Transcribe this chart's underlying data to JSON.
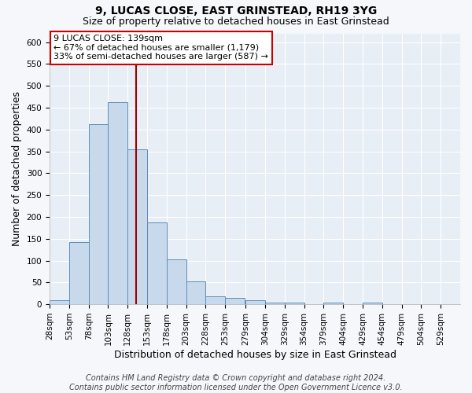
{
  "title": "9, LUCAS CLOSE, EAST GRINSTEAD, RH19 3YG",
  "subtitle": "Size of property relative to detached houses in East Grinstead",
  "xlabel": "Distribution of detached houses by size in East Grinstead",
  "ylabel": "Number of detached properties",
  "bar_values": [
    10,
    143,
    413,
    463,
    355,
    187,
    103,
    52,
    18,
    14,
    10,
    3,
    3,
    0,
    3,
    0,
    3
  ],
  "bin_edges": [
    28,
    53,
    78,
    103,
    128,
    153,
    178,
    203,
    228,
    253,
    279,
    304,
    329,
    354,
    379,
    404,
    429,
    454,
    479,
    504,
    529
  ],
  "tick_labels": [
    "28sqm",
    "53sqm",
    "78sqm",
    "103sqm",
    "128sqm",
    "153sqm",
    "178sqm",
    "203sqm",
    "228sqm",
    "253sqm",
    "279sqm",
    "304sqm",
    "329sqm",
    "354sqm",
    "379sqm",
    "404sqm",
    "429sqm",
    "454sqm",
    "479sqm",
    "504sqm",
    "529sqm"
  ],
  "bar_color": "#c9d9ec",
  "bar_edge_color": "#5b8db8",
  "vline_x": 139,
  "vline_color": "#990000",
  "ylim_max": 620,
  "yticks": [
    0,
    50,
    100,
    150,
    200,
    250,
    300,
    350,
    400,
    450,
    500,
    550,
    600
  ],
  "annotation_title": "9 LUCAS CLOSE: 139sqm",
  "annotation_line1": "← 67% of detached houses are smaller (1,179)",
  "annotation_line2": "33% of semi-detached houses are larger (587) →",
  "annotation_box_facecolor": "#ffffff",
  "annotation_box_edgecolor": "#cc0000",
  "footer_line1": "Contains HM Land Registry data © Crown copyright and database right 2024.",
  "footer_line2": "Contains public sector information licensed under the Open Government Licence v3.0.",
  "plot_bg_color": "#e8eef5",
  "fig_bg_color": "#f5f7fa",
  "grid_color": "#ffffff",
  "title_fontsize": 10,
  "subtitle_fontsize": 9,
  "axis_label_fontsize": 9,
  "tick_fontsize": 7.5,
  "annotation_fontsize": 8,
  "footer_fontsize": 7
}
